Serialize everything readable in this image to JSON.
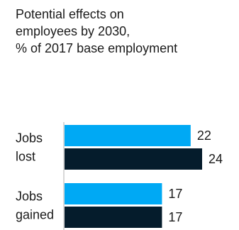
{
  "chart_data": {
    "type": "bar",
    "orientation": "horizontal",
    "title_lines": [
      "Potential effects on",
      "employees by 2030,",
      "% of 2017 base employment"
    ],
    "categories": [
      [
        "Jobs",
        "lost"
      ],
      [
        "Jobs",
        "gained"
      ]
    ],
    "series": [
      {
        "values": [
          22,
          17
        ],
        "color": "#00a9f4"
      },
      {
        "values": [
          24,
          17
        ],
        "color": "#051c2c"
      }
    ],
    "xlim": [
      0,
      24
    ],
    "grid": false,
    "legend": "none"
  }
}
